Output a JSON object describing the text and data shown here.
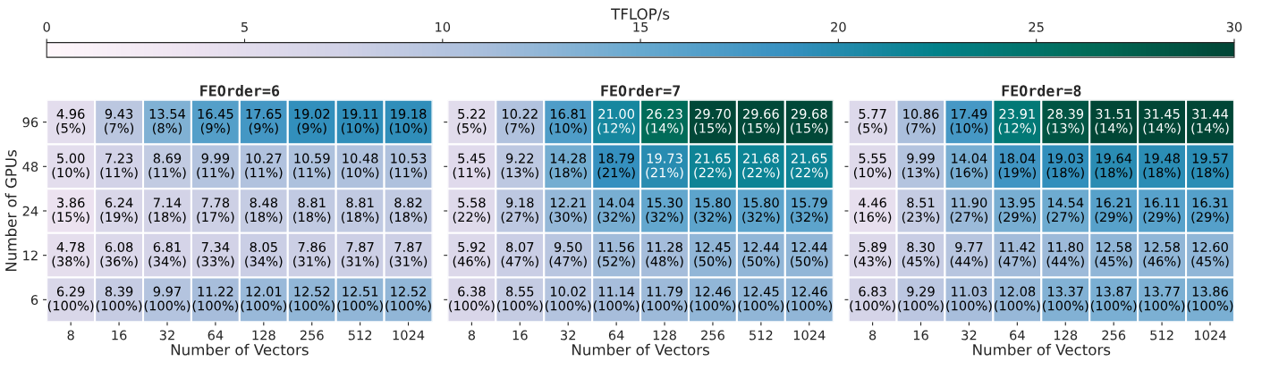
{
  "chart_data": [
    {
      "type": "heatmap",
      "title": "FEOrder=6",
      "xlabel": "Number of Vectors",
      "ylabel": "Number of GPUs",
      "clabel": "TFLOP/s",
      "clim": [
        0,
        30
      ],
      "cticks": [
        0,
        5,
        10,
        15,
        20,
        25,
        30
      ],
      "categories": [
        "8",
        "16",
        "32",
        "64",
        "128",
        "256",
        "512",
        "1024"
      ],
      "y_categories": [
        "96",
        "48",
        "24",
        "12",
        "6"
      ],
      "cells": [
        [
          4.96,
          9.43,
          13.54,
          16.45,
          17.65,
          19.02,
          19.11,
          19.18
        ],
        [
          5.0,
          7.23,
          8.69,
          9.99,
          10.27,
          10.59,
          10.48,
          10.53
        ],
        [
          3.86,
          6.24,
          7.14,
          7.78,
          8.48,
          8.81,
          8.81,
          8.82
        ],
        [
          4.78,
          6.08,
          6.81,
          7.34,
          8.05,
          7.86,
          7.87,
          7.87
        ],
        [
          6.29,
          8.39,
          9.97,
          11.22,
          12.01,
          12.52,
          12.51,
          12.52
        ]
      ],
      "cell_labels": [
        [
          "4.96",
          "9.43",
          "13.54",
          "16.45",
          "17.65",
          "19.02",
          "19.11",
          "19.18"
        ],
        [
          "5.00",
          "7.23",
          "8.69",
          "9.99",
          "10.27",
          "10.59",
          "10.48",
          "10.53"
        ],
        [
          "3.86",
          "6.24",
          "7.14",
          "7.78",
          "8.48",
          "8.81",
          "8.81",
          "8.82"
        ],
        [
          "4.78",
          "6.08",
          "6.81",
          "7.34",
          "8.05",
          "7.86",
          "7.87",
          "7.87"
        ],
        [
          "6.29",
          "8.39",
          "9.97",
          "11.22",
          "12.01",
          "12.52",
          "12.51",
          "12.52"
        ]
      ],
      "annotations": [
        "(5%)",
        "(7%)",
        "(8%)",
        "(9%)",
        "(9%)",
        "(9%)",
        "(10%)",
        "(10%)",
        "(10%)",
        "(11%)",
        "(11%)",
        "(11%)",
        "(11%)",
        "(11%)",
        "(10%)",
        "(11%)",
        "(15%)",
        "(19%)",
        "(18%)",
        "(17%)",
        "(18%)",
        "(18%)",
        "(18%)",
        "(18%)",
        "(38%)",
        "(36%)",
        "(34%)",
        "(33%)",
        "(34%)",
        "(31%)",
        "(31%)",
        "(31%)",
        "(100%)",
        "(100%)",
        "(100%)",
        "(100%)",
        "(100%)",
        "(100%)",
        "(100%)",
        "(100%)"
      ]
    },
    {
      "type": "heatmap",
      "title": "FEOrder=7",
      "xlabel": "Number of Vectors",
      "tick_labels": "x",
      "categories": [
        "8",
        "16",
        "32",
        "64",
        "128",
        "256",
        "512",
        "1024"
      ],
      "y_categories": [
        "96",
        "48",
        "24",
        "12",
        "6"
      ],
      "cells": [
        [
          5.22,
          10.22,
          16.81,
          21.0,
          26.23,
          29.7,
          29.66,
          29.68
        ],
        [
          5.45,
          9.22,
          14.28,
          18.79,
          19.73,
          21.65,
          21.68,
          21.65
        ],
        [
          5.58,
          9.18,
          12.21,
          14.04,
          15.3,
          15.8,
          15.8,
          15.79
        ],
        [
          5.92,
          8.07,
          9.5,
          11.56,
          11.28,
          12.45,
          12.44,
          12.44
        ],
        [
          6.38,
          8.55,
          10.02,
          11.14,
          11.79,
          12.46,
          12.45,
          12.46
        ]
      ],
      "cell_labels": [
        [
          "5.22",
          "10.22",
          "16.81",
          "21.00",
          "26.23",
          "29.70",
          "29.66",
          "29.68"
        ],
        [
          "5.45",
          "9.22",
          "14.28",
          "18.79",
          "19.73",
          "21.65",
          "21.68",
          "21.65"
        ],
        [
          "5.58",
          "9.18",
          "12.21",
          "14.04",
          "15.30",
          "15.80",
          "15.80",
          "15.79"
        ],
        [
          "5.92",
          "8.07",
          "9.50",
          "11.56",
          "11.28",
          "12.45",
          "12.44",
          "12.44"
        ],
        [
          "6.38",
          "8.55",
          "10.02",
          "11.14",
          "11.79",
          "12.46",
          "12.45",
          "12.46"
        ]
      ],
      "annotations": [
        "(5%)",
        "(7%)",
        "(10%)",
        "(12%)",
        "(14%)",
        "(15%)",
        "(15%)",
        "(15%)",
        "(11%)",
        "(13%)",
        "(18%)",
        "(21%)",
        "(21%)",
        "(22%)",
        "(22%)",
        "(22%)",
        "(22%)",
        "(27%)",
        "(30%)",
        "(32%)",
        "(32%)",
        "(32%)",
        "(32%)",
        "(32%)",
        "(46%)",
        "(47%)",
        "(47%)",
        "(52%)",
        "(48%)",
        "(50%)",
        "(50%)",
        "(50%)",
        "(100%)",
        "(100%)",
        "(100%)",
        "(100%)",
        "(100%)",
        "(100%)",
        "(100%)",
        "(100%)"
      ]
    },
    {
      "type": "heatmap",
      "title": "FEOrder=8",
      "xlabel": "Number of Vectors",
      "tick_labels": "x",
      "categories": [
        "8",
        "16",
        "32",
        "64",
        "128",
        "256",
        "512",
        "1024"
      ],
      "y_categories": [
        "96",
        "48",
        "24",
        "12",
        "6"
      ],
      "cells": [
        [
          5.77,
          10.86,
          17.49,
          23.91,
          28.39,
          31.51,
          31.45,
          31.44
        ],
        [
          5.55,
          9.99,
          14.04,
          18.04,
          19.03,
          19.64,
          19.48,
          19.57
        ],
        [
          4.46,
          8.51,
          11.9,
          13.95,
          14.54,
          16.21,
          16.11,
          16.31
        ],
        [
          5.89,
          8.3,
          9.77,
          11.42,
          11.8,
          12.58,
          12.58,
          12.6
        ],
        [
          6.83,
          9.29,
          11.03,
          12.08,
          13.37,
          13.87,
          13.77,
          13.86
        ]
      ],
      "cell_labels": [
        [
          "5.77",
          "10.86",
          "17.49",
          "23.91",
          "28.39",
          "31.51",
          "31.45",
          "31.44"
        ],
        [
          "5.55",
          "9.99",
          "14.04",
          "18.04",
          "19.03",
          "19.64",
          "19.48",
          "19.57"
        ],
        [
          "4.46",
          "8.51",
          "11.90",
          "13.95",
          "14.54",
          "16.21",
          "16.11",
          "16.31"
        ],
        [
          "5.89",
          "8.30",
          "9.77",
          "11.42",
          "11.80",
          "12.58",
          "12.58",
          "12.60"
        ],
        [
          "6.83",
          "9.29",
          "11.03",
          "12.08",
          "13.37",
          "13.87",
          "13.77",
          "13.86"
        ]
      ],
      "annotations": [
        "(5%)",
        "(7%)",
        "(10%)",
        "(12%)",
        "(13%)",
        "(14%)",
        "(14%)",
        "(14%)",
        "(10%)",
        "(13%)",
        "(16%)",
        "(19%)",
        "(18%)",
        "(18%)",
        "(18%)",
        "(18%)",
        "(16%)",
        "(23%)",
        "(27%)",
        "(29%)",
        "(27%)",
        "(29%)",
        "(29%)",
        "(29%)",
        "(43%)",
        "(45%)",
        "(44%)",
        "(47%)",
        "(44%)",
        "(45%)",
        "(46%)",
        "(45%)",
        "(100%)",
        "(100%)",
        "(100%)",
        "(100%)",
        "(100%)",
        "(100%)",
        "(100%)",
        "(100%)"
      ]
    }
  ]
}
